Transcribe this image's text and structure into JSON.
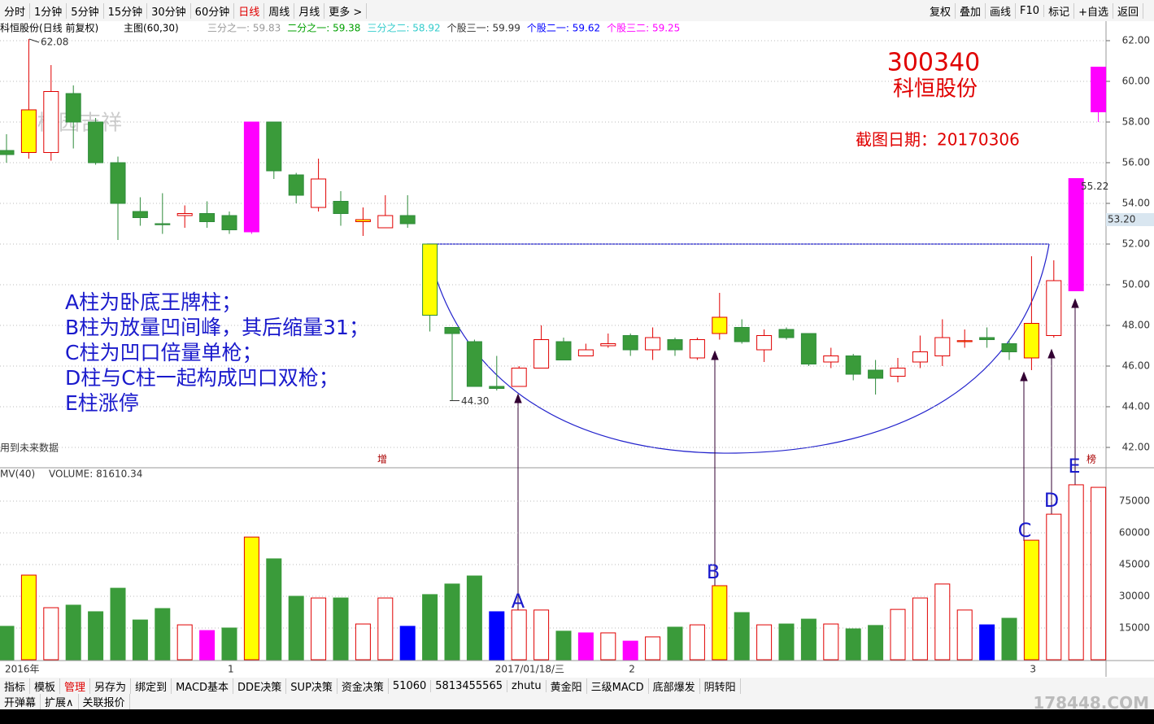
{
  "toolbar": {
    "left": [
      "分时",
      "1分钟",
      "5分钟",
      "15分钟",
      "30分钟",
      "60分钟",
      "日线",
      "周线",
      "月线",
      "更多 >"
    ],
    "active": "日线",
    "right": [
      "复权",
      "叠加",
      "画线",
      "F10",
      "标记",
      "+自选",
      "返回"
    ]
  },
  "info": {
    "stock": "科恒股份(日线 前复权)",
    "main": "主图(60,30)",
    "levels": [
      {
        "label": "三分之一: 59.83",
        "color": "#999999"
      },
      {
        "label": "二分之一: 59.38",
        "color": "#00a000"
      },
      {
        "label": "三分之二: 58.92",
        "color": "#33cccc"
      },
      {
        "label": "个股三一: 59.99",
        "color": "#333333"
      },
      {
        "label": "个股二一: 59.62",
        "color": "#0000ff"
      },
      {
        "label": "个股三二: 59.25",
        "color": "#ff00ff"
      }
    ]
  },
  "stock": {
    "code": "300340",
    "name": "科恒股份",
    "date_note": "截图日期：20170306",
    "watermark": "桃园吉祥",
    "future_note": "用到未来数据",
    "mark_zeng": "增",
    "mark_bang": "榜"
  },
  "annotations": {
    "lines": [
      "A柱为卧底王牌柱；",
      "B柱为放量凹间峰，其后缩量31；",
      "C柱为凹口倍量单枪；",
      "D柱与C柱一起构成凹口双枪；",
      "E柱涨停"
    ],
    "letters": [
      "A",
      "B",
      "C",
      "D",
      "E"
    ]
  },
  "chart_data": [
    {
      "type": "candlestick",
      "ylim": [
        41,
        62.8
      ],
      "yticks": [
        {
          "value": 42,
          "label": "42.00"
        },
        {
          "value": 44,
          "label": "44.00"
        },
        {
          "value": 46,
          "label": "46.00"
        },
        {
          "value": 48,
          "label": "48.00"
        },
        {
          "value": 50,
          "label": "50.00"
        },
        {
          "value": 52,
          "label": "52.00"
        },
        {
          "value": 54,
          "label": "54.00"
        },
        {
          "value": 56,
          "label": "56.00"
        },
        {
          "value": 58,
          "label": "58.00"
        },
        {
          "value": 60,
          "label": "60.00"
        },
        {
          "value": 62,
          "label": "62.00"
        }
      ],
      "low_label": "44.30",
      "current_price": {
        "value": 53.2,
        "label": "53.20"
      },
      "candles": [
        {
          "o": 56.6,
          "h": 57.4,
          "l": 56.0,
          "c": 56.4
        },
        {
          "o": 56.5,
          "h": 62.08,
          "l": 56.2,
          "c": 58.6,
          "fill": "#ffff00"
        },
        {
          "o": 56.5,
          "h": 60.8,
          "l": 56.1,
          "c": 59.5
        },
        {
          "o": 59.4,
          "h": 59.8,
          "l": 56.7,
          "c": 58.0
        },
        {
          "o": 58.0,
          "h": 58.2,
          "l": 55.9,
          "c": 56.0
        },
        {
          "o": 56.0,
          "h": 56.3,
          "l": 52.2,
          "c": 54.0
        },
        {
          "o": 53.6,
          "h": 54.3,
          "l": 52.9,
          "c": 53.3
        },
        {
          "o": 53.0,
          "h": 54.5,
          "l": 52.5,
          "c": 52.95
        },
        {
          "o": 53.4,
          "h": 53.9,
          "l": 52.8,
          "c": 53.5
        },
        {
          "o": 53.5,
          "h": 54.1,
          "l": 52.8,
          "c": 53.1
        },
        {
          "o": 53.4,
          "h": 53.6,
          "l": 52.5,
          "c": 52.7
        },
        {
          "o": 52.6,
          "h": 58.0,
          "l": 52.5,
          "c": 58.0,
          "fill": "#ff00ff"
        },
        {
          "o": 58.0,
          "h": 58.0,
          "l": 55.2,
          "c": 55.6
        },
        {
          "o": 55.4,
          "h": 55.5,
          "l": 54.0,
          "c": 54.4
        },
        {
          "o": 53.8,
          "h": 56.2,
          "l": 53.6,
          "c": 55.2
        },
        {
          "o": 54.1,
          "h": 54.6,
          "l": 52.9,
          "c": 53.5
        },
        {
          "o": 53.1,
          "h": 53.8,
          "l": 52.4,
          "c": 53.2,
          "fill": "#ffff00"
        },
        {
          "o": 52.8,
          "h": 54.4,
          "l": 52.8,
          "c": 53.4
        },
        {
          "o": 53.4,
          "h": 54.4,
          "l": 52.8,
          "c": 53.0
        },
        {
          "o": 52.0,
          "h": 52.0,
          "l": 47.7,
          "c": 48.5,
          "fill": "#ffff00"
        },
        {
          "o": 47.9,
          "h": 47.9,
          "l": 44.3,
          "c": 47.6
        },
        {
          "o": 47.2,
          "h": 47.3,
          "l": 45.0,
          "c": 45.0
        },
        {
          "o": 45.0,
          "h": 46.5,
          "l": 44.8,
          "c": 44.9
        },
        {
          "o": 45.0,
          "h": 46.0,
          "l": 45.0,
          "c": 45.9
        },
        {
          "o": 45.9,
          "h": 48.0,
          "l": 45.9,
          "c": 47.3
        },
        {
          "o": 47.2,
          "h": 47.4,
          "l": 46.3,
          "c": 46.3
        },
        {
          "o": 46.5,
          "h": 47.1,
          "l": 46.5,
          "c": 46.8
        },
        {
          "o": 47.0,
          "h": 47.6,
          "l": 46.9,
          "c": 47.1
        },
        {
          "o": 47.5,
          "h": 47.6,
          "l": 46.5,
          "c": 46.8
        },
        {
          "o": 46.8,
          "h": 47.9,
          "l": 46.3,
          "c": 47.4
        },
        {
          "o": 47.3,
          "h": 47.4,
          "l": 46.5,
          "c": 46.8
        },
        {
          "o": 46.4,
          "h": 47.4,
          "l": 46.3,
          "c": 47.3
        },
        {
          "o": 47.6,
          "h": 49.6,
          "l": 47.3,
          "c": 48.4,
          "fill": "#ffff00"
        },
        {
          "o": 47.9,
          "h": 48.3,
          "l": 47.1,
          "c": 47.2
        },
        {
          "o": 46.8,
          "h": 47.8,
          "l": 46.2,
          "c": 47.5
        },
        {
          "o": 47.8,
          "h": 47.9,
          "l": 47.3,
          "c": 47.4
        },
        {
          "o": 47.6,
          "h": 47.6,
          "l": 46.0,
          "c": 46.1
        },
        {
          "o": 46.2,
          "h": 46.9,
          "l": 45.9,
          "c": 46.5
        },
        {
          "o": 46.5,
          "h": 46.6,
          "l": 45.3,
          "c": 45.6
        },
        {
          "o": 45.8,
          "h": 46.3,
          "l": 44.6,
          "c": 45.4
        },
        {
          "o": 45.5,
          "h": 46.4,
          "l": 45.2,
          "c": 45.9
        },
        {
          "o": 46.2,
          "h": 47.5,
          "l": 45.9,
          "c": 46.7
        },
        {
          "o": 46.5,
          "h": 48.3,
          "l": 46.0,
          "c": 47.4
        },
        {
          "o": 47.2,
          "h": 47.8,
          "l": 46.9,
          "c": 47.25,
          "fill": "#ffff00"
        },
        {
          "o": 47.4,
          "h": 47.9,
          "l": 46.9,
          "c": 47.3
        },
        {
          "o": 47.1,
          "h": 47.3,
          "l": 46.3,
          "c": 46.7
        },
        {
          "o": 46.4,
          "h": 51.4,
          "l": 45.8,
          "c": 48.1,
          "fill": "#ffff00"
        },
        {
          "o": 47.5,
          "h": 51.2,
          "l": 47.4,
          "c": 50.2
        },
        {
          "o": 49.7,
          "h": 55.22,
          "l": 49.7,
          "c": 55.22,
          "fill": "#ff00ff"
        },
        {
          "o": 58.5,
          "h": 60.7,
          "l": 58.0,
          "c": 60.7,
          "fill": "#ff00ff"
        }
      ]
    },
    {
      "type": "bar",
      "title": "MV(40)",
      "subtitle": "VOLUME: 81610.34",
      "ylim": [
        0,
        89600
      ],
      "yticks": [
        15000,
        30000,
        45000,
        60000,
        75000
      ],
      "categories": [
        "2016年",
        null,
        null,
        null,
        null,
        null,
        null,
        null,
        null,
        null,
        "1",
        null,
        null,
        null,
        null,
        null,
        null,
        null,
        null,
        null,
        null,
        null,
        "2017/01/18/三",
        null,
        null,
        null,
        null,
        null,
        "2",
        null,
        null,
        null,
        null,
        null,
        null,
        null,
        null,
        null,
        null,
        null,
        null,
        null,
        null,
        null,
        null,
        null,
        "3",
        null,
        null,
        null
      ],
      "values": [
        15800,
        40000,
        24600,
        25800,
        22700,
        33800,
        18800,
        24200,
        16500,
        13800,
        15000,
        58000,
        47700,
        30000,
        29200,
        29200,
        16900,
        29200,
        15800,
        30800,
        35800,
        39600,
        22700,
        23500,
        23500,
        13500,
        12700,
        12700,
        8800,
        10800,
        15400,
        16500,
        35000,
        22300,
        16500,
        16900,
        19200,
        16900,
        14600,
        16200,
        23800,
        29200,
        35800,
        23500,
        16500,
        19600,
        56500,
        68800,
        82700,
        81500
      ],
      "colors": [
        "#3a9b3a",
        "#ffff00",
        "#ffffff",
        "#3a9b3a",
        "#3a9b3a",
        "#3a9b3a",
        "#3a9b3a",
        "#3a9b3a",
        "#ffffff",
        "#ff00ff",
        "#3a9b3a",
        "#ffff00",
        "#3a9b3a",
        "#3a9b3a",
        "#ffffff",
        "#3a9b3a",
        "#ffffff",
        "#ffffff",
        "#0000ff",
        "#3a9b3a",
        "#3a9b3a",
        "#3a9b3a",
        "#0000ff",
        "#ffffff",
        "#ffffff",
        "#3a9b3a",
        "#ff00ff",
        "#ffffff",
        "#ff00ff",
        "#ffffff",
        "#3a9b3a",
        "#ffffff",
        "#ffff00",
        "#3a9b3a",
        "#ffffff",
        "#3a9b3a",
        "#3a9b3a",
        "#ffffff",
        "#3a9b3a",
        "#3a9b3a",
        "#ffffff",
        "#ffffff",
        "#ffffff",
        "#ffffff",
        "#0000ff",
        "#3a9b3a",
        "#ffff00",
        "#ffffff",
        "#ffffff",
        "#ffffff"
      ]
    }
  ],
  "tabs": {
    "row1": [
      "指标",
      "模板",
      "管理",
      "另存为",
      "绑定到",
      "MACD基本",
      "DDE决策",
      "SUP决策",
      "资金决策",
      "51060",
      "5813455565",
      "zhutu",
      "黄金阳",
      "三级MACD",
      "底部爆发",
      "阴转阳"
    ],
    "active": "管理",
    "row2": [
      "开弹幕",
      "扩展∧",
      "关联报价"
    ],
    "site": "178448.COM"
  }
}
